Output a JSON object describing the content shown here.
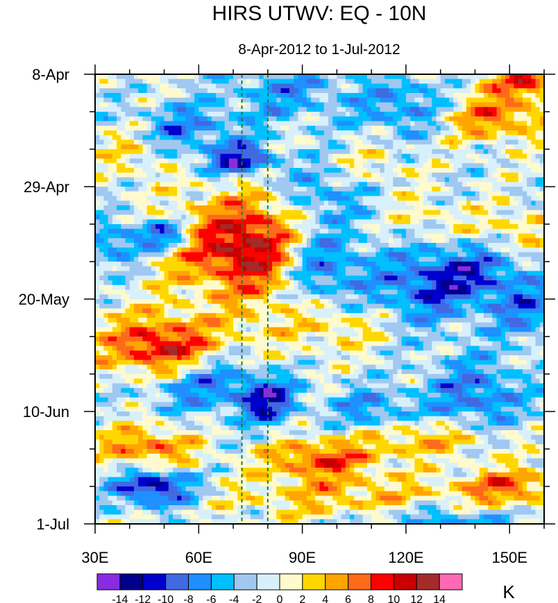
{
  "chart_data": {
    "type": "heatmap",
    "title": "HIRS UTWV: EQ - 10N",
    "subtitle": "8-Apr-2012 to 1-Jul-2012",
    "xaxis": {
      "range": [
        30,
        160
      ],
      "tick_values": [
        30,
        60,
        90,
        120,
        150
      ],
      "tick_labels": [
        "30E",
        "60E",
        "90E",
        "120E",
        "150E"
      ],
      "minor_step": 10
    },
    "yaxis": {
      "range_days": [
        0,
        84
      ],
      "tick_days": [
        0,
        21,
        42,
        63,
        84
      ],
      "tick_labels": [
        "8-Apr",
        "29-Apr",
        "20-May",
        "10-Jun",
        "1-Jul"
      ],
      "minor_step_days": 7,
      "direction": "top-to-bottom"
    },
    "reference_lines": [
      {
        "x": 72.5,
        "color": "#1e7d2e",
        "style": "dashed"
      },
      {
        "x": 80,
        "color": "#1e7d2e",
        "style": "dashed"
      }
    ],
    "colorbar": {
      "units": "K",
      "levels": [
        -14,
        -12,
        -10,
        -8,
        -6,
        -4,
        -2,
        0,
        2,
        4,
        6,
        8,
        10,
        12,
        14
      ],
      "level_labels": [
        "-14",
        "-12",
        "-10",
        "-8",
        "-6",
        "-4",
        "-2",
        "0",
        "2",
        "4",
        "6",
        "8",
        "10",
        "12",
        "14"
      ],
      "colors": [
        "#8a2be2",
        "#00008b",
        "#0000cd",
        "#4169e1",
        "#1e90ff",
        "#00bfff",
        "#a0c8f0",
        "#d8f0fa",
        "#fffacd",
        "#ffd700",
        "#ffa500",
        "#ff6a1a",
        "#ff0000",
        "#c80000",
        "#a52a2a",
        "#ff69b4"
      ]
    },
    "anomaly_features": [
      {
        "x": 67,
        "day": 32,
        "value": 10,
        "sx": 12,
        "sy": 6
      },
      {
        "x": 80,
        "day": 33,
        "value": 7,
        "sx": 8,
        "sy": 8
      },
      {
        "x": 50,
        "day": 52,
        "value": 9,
        "sx": 9,
        "sy": 3.5
      },
      {
        "x": 95,
        "day": 72,
        "value": 9,
        "sx": 11,
        "sy": 2.5
      },
      {
        "x": 45,
        "day": 70,
        "value": 8,
        "sx": 10,
        "sy": 3
      },
      {
        "x": 125,
        "day": 68,
        "value": 6,
        "sx": 15,
        "sy": 2.5
      },
      {
        "x": 145,
        "day": 8,
        "value": 8,
        "sx": 11,
        "sy": 3
      },
      {
        "x": 155,
        "day": 1,
        "value": 9,
        "sx": 9,
        "sy": 2.5
      },
      {
        "x": 125,
        "day": 27,
        "value": 3,
        "sx": 6,
        "sy": 3
      },
      {
        "x": 150,
        "day": 77,
        "value": 8,
        "sx": 10,
        "sy": 2.5
      },
      {
        "x": 105,
        "day": 79,
        "value": 5,
        "sx": 25,
        "sy": 3
      },
      {
        "x": 150,
        "day": 29,
        "value": 4,
        "sx": 10,
        "sy": 3
      },
      {
        "x": 50,
        "day": 50,
        "value": 5,
        "sx": 20,
        "sy": 5
      },
      {
        "x": 40,
        "day": 14,
        "value": 4,
        "sx": 7,
        "sy": 4
      },
      {
        "x": 110,
        "day": 17,
        "value": 3,
        "sx": 8,
        "sy": 3
      },
      {
        "x": 100,
        "day": 47,
        "value": 4,
        "sx": 10,
        "sy": 3
      },
      {
        "x": 47,
        "day": 77,
        "value": -12,
        "sx": 8,
        "sy": 2.5
      },
      {
        "x": 50,
        "day": 30,
        "value": -10,
        "sx": 6,
        "sy": 2
      },
      {
        "x": 72,
        "day": 16,
        "value": -11,
        "sx": 7,
        "sy": 2
      },
      {
        "x": 80,
        "day": 61,
        "value": -10,
        "sx": 6,
        "sy": 3
      },
      {
        "x": 125,
        "day": 40,
        "value": -7,
        "sx": 10,
        "sy": 5
      },
      {
        "x": 95,
        "day": 36,
        "value": -7,
        "sx": 10,
        "sy": 5
      },
      {
        "x": 140,
        "day": 60,
        "value": -7,
        "sx": 10,
        "sy": 5
      },
      {
        "x": 60,
        "day": 57,
        "value": -8,
        "sx": 12,
        "sy": 4
      },
      {
        "x": 110,
        "day": 63,
        "value": -6,
        "sx": 8,
        "sy": 3
      },
      {
        "x": 120,
        "day": 6,
        "value": -6,
        "sx": 10,
        "sy": 4
      },
      {
        "x": 55,
        "day": 10,
        "value": -6,
        "sx": 12,
        "sy": 3
      },
      {
        "x": 130,
        "day": 84,
        "value": -6,
        "sx": 15,
        "sy": 2.5
      },
      {
        "x": 140,
        "day": 37,
        "value": -7,
        "sx": 10,
        "sy": 4
      },
      {
        "x": 35,
        "day": 32,
        "value": -6,
        "sx": 6,
        "sy": 3
      },
      {
        "x": 95,
        "day": 22,
        "value": -5,
        "sx": 10,
        "sy": 4
      },
      {
        "x": 155,
        "day": 44,
        "value": -6,
        "sx": 8,
        "sy": 4
      },
      {
        "x": 85,
        "day": 3,
        "value": -5,
        "sx": 12,
        "sy": 4
      }
    ]
  }
}
